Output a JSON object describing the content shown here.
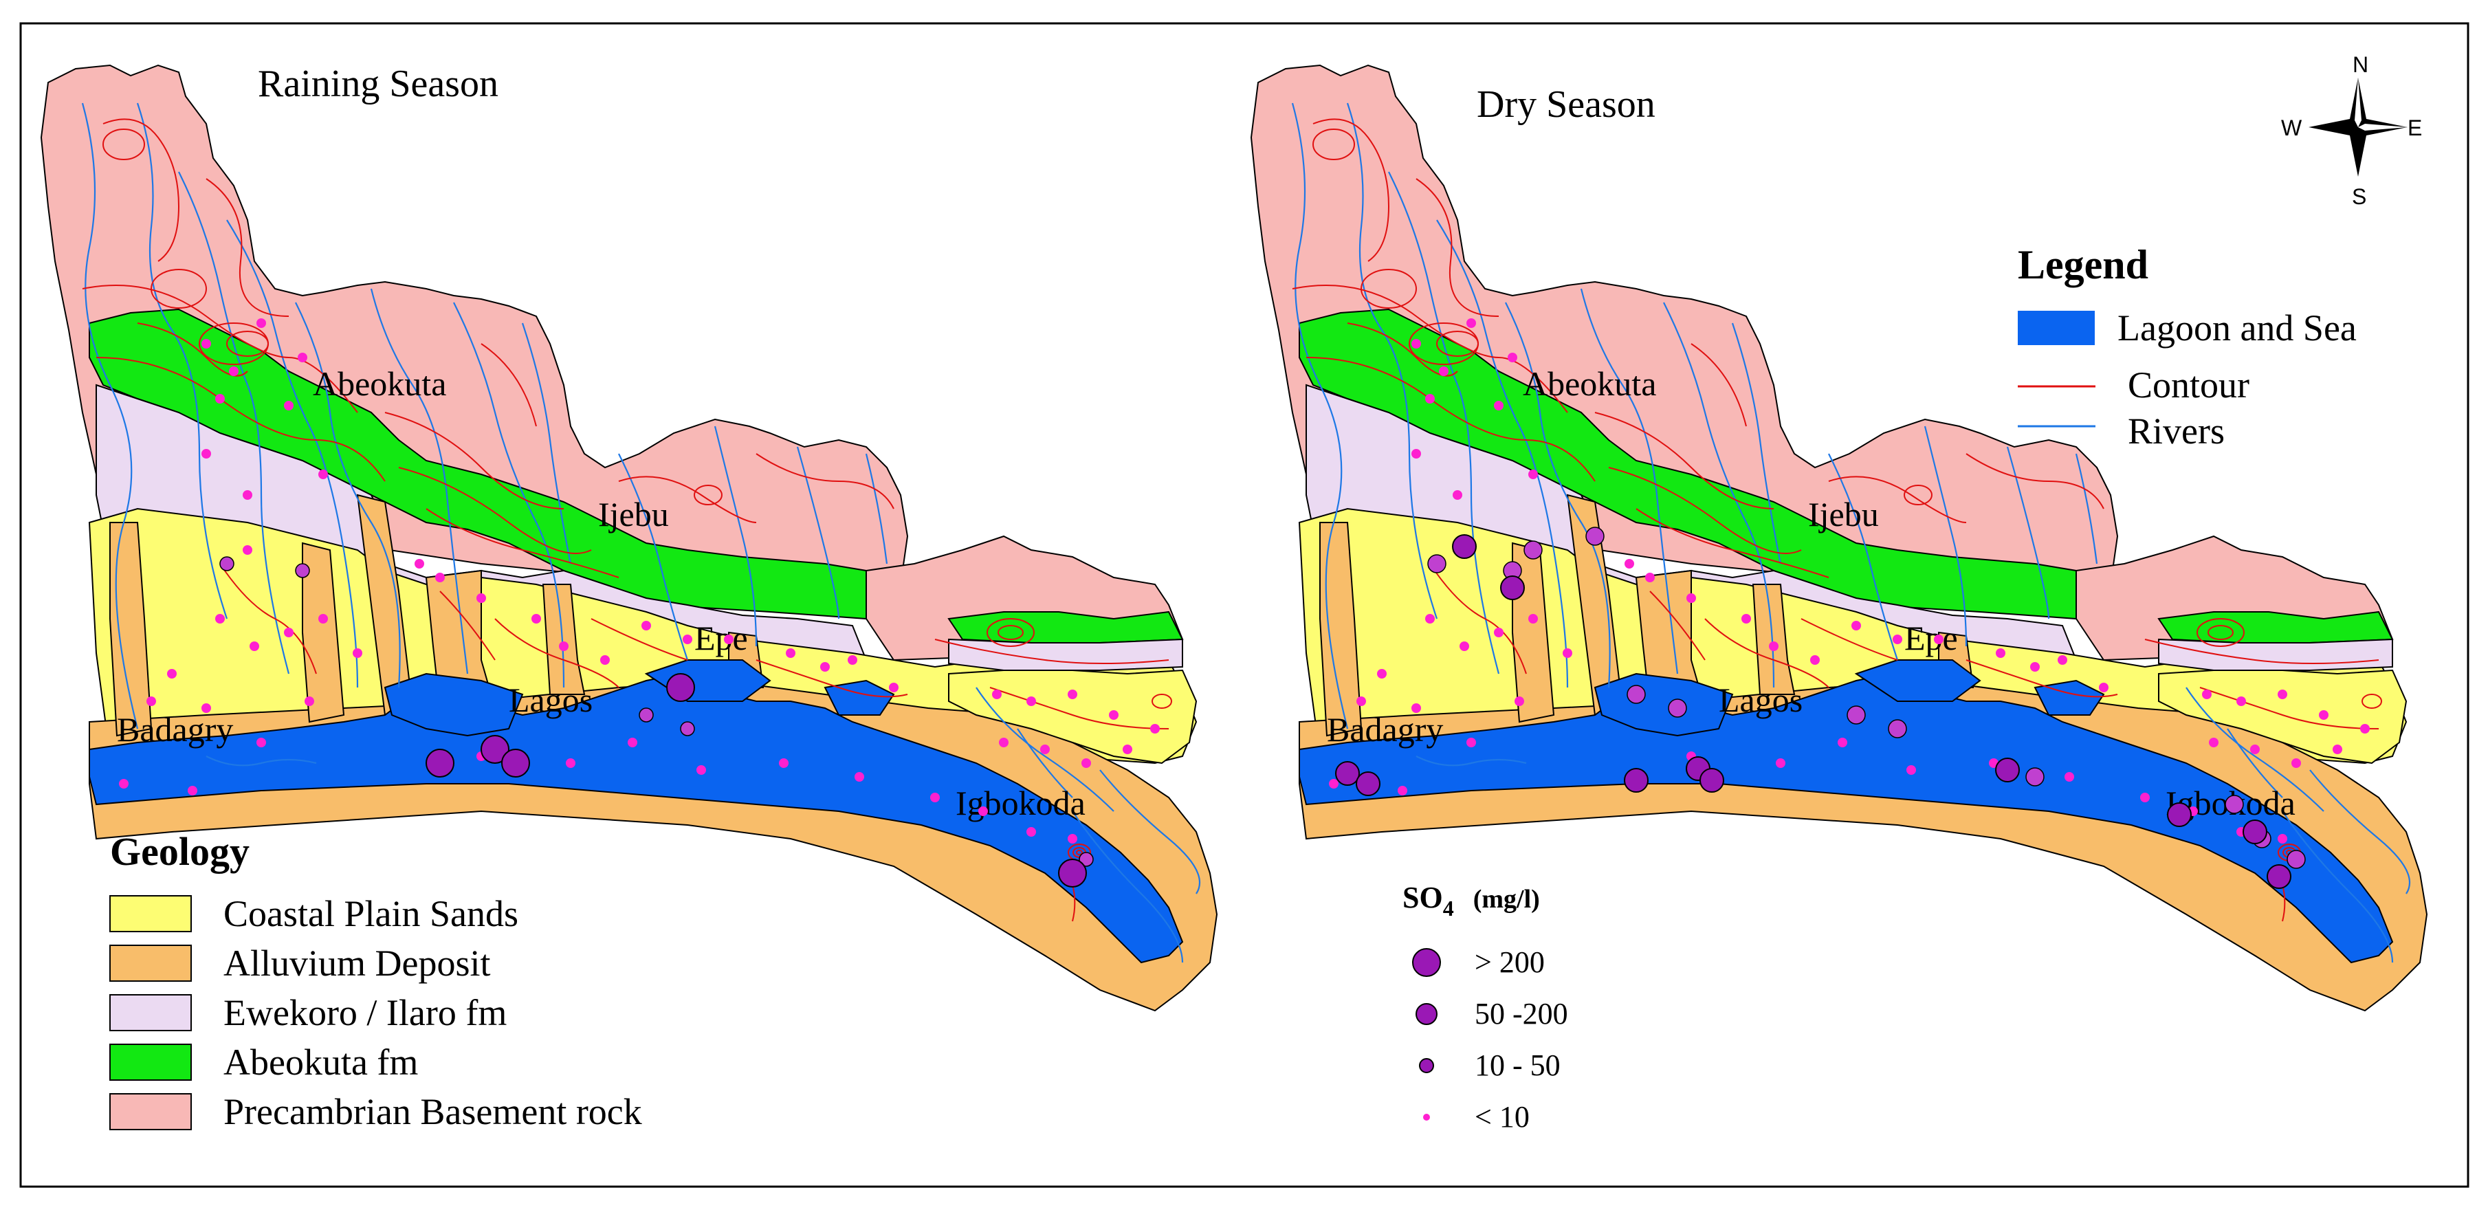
{
  "maps": [
    {
      "title": "Raining Season"
    },
    {
      "title": "Dry Season"
    }
  ],
  "towns": [
    "Abeokuta",
    "Ijebu",
    "Epe",
    "Lagos",
    "Badagry",
    "Igbokoda"
  ],
  "compass": {
    "n": "N",
    "s": "S",
    "e": "E",
    "w": "W"
  },
  "legend": {
    "title": "Legend",
    "items": [
      {
        "label": "Lagoon and Sea",
        "color": "#0a64f0",
        "kind": "fill"
      },
      {
        "label": "Contour",
        "color": "#e01010",
        "kind": "line"
      },
      {
        "label": "Rivers",
        "color": "#1e78e6",
        "kind": "line"
      }
    ]
  },
  "geology": {
    "title": "Geology",
    "items": [
      {
        "label": "Coastal Plain Sands",
        "color": "#fdfd73"
      },
      {
        "label": "Alluvium Deposit",
        "color": "#f8bd6a"
      },
      {
        "label": "Ewekoro / Ilaro fm",
        "color": "#ebdaf2"
      },
      {
        "label": "Abeokuta fm",
        "color": "#12e812"
      },
      {
        "label": "Precambrian Basement rock",
        "color": "#f8b8b6"
      }
    ]
  },
  "so4": {
    "title_main": "SO",
    "title_sub": "4",
    "title_unit": "(mg/l)",
    "classes": [
      {
        "label": "> 200"
      },
      {
        "label": "50 -200"
      },
      {
        "label": "10 - 50"
      },
      {
        "label": "< 10"
      }
    ]
  }
}
